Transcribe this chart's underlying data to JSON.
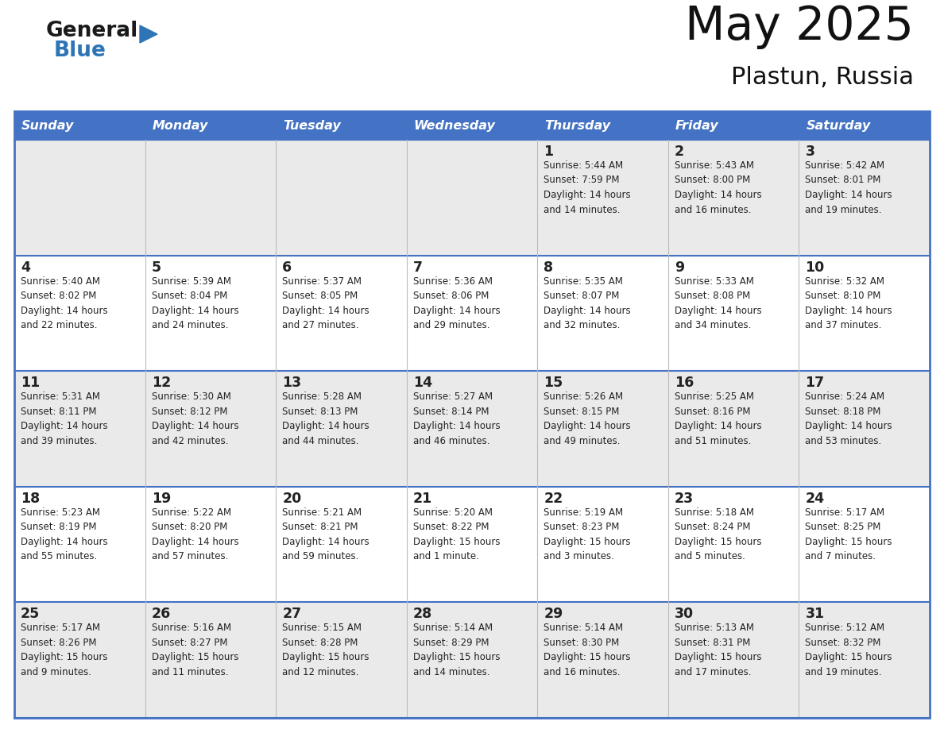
{
  "title": "May 2025",
  "subtitle": "Plastun, Russia",
  "header_color": "#4472C4",
  "header_text_color": "#FFFFFF",
  "days_of_week": [
    "Sunday",
    "Monday",
    "Tuesday",
    "Wednesday",
    "Thursday",
    "Friday",
    "Saturday"
  ],
  "bg_color": "#FFFFFF",
  "cell_bg_even": "#EAEAEA",
  "cell_bg_odd": "#FFFFFF",
  "text_color": "#222222",
  "border_color": "#4472C4",
  "logo_general_color": "#1a1a1a",
  "logo_blue_color": "#2E75B6",
  "logo_triangle_color": "#2E75B6",
  "weeks": [
    [
      {
        "day": "",
        "info": ""
      },
      {
        "day": "",
        "info": ""
      },
      {
        "day": "",
        "info": ""
      },
      {
        "day": "",
        "info": ""
      },
      {
        "day": "1",
        "info": "Sunrise: 5:44 AM\nSunset: 7:59 PM\nDaylight: 14 hours\nand 14 minutes."
      },
      {
        "day": "2",
        "info": "Sunrise: 5:43 AM\nSunset: 8:00 PM\nDaylight: 14 hours\nand 16 minutes."
      },
      {
        "day": "3",
        "info": "Sunrise: 5:42 AM\nSunset: 8:01 PM\nDaylight: 14 hours\nand 19 minutes."
      }
    ],
    [
      {
        "day": "4",
        "info": "Sunrise: 5:40 AM\nSunset: 8:02 PM\nDaylight: 14 hours\nand 22 minutes."
      },
      {
        "day": "5",
        "info": "Sunrise: 5:39 AM\nSunset: 8:04 PM\nDaylight: 14 hours\nand 24 minutes."
      },
      {
        "day": "6",
        "info": "Sunrise: 5:37 AM\nSunset: 8:05 PM\nDaylight: 14 hours\nand 27 minutes."
      },
      {
        "day": "7",
        "info": "Sunrise: 5:36 AM\nSunset: 8:06 PM\nDaylight: 14 hours\nand 29 minutes."
      },
      {
        "day": "8",
        "info": "Sunrise: 5:35 AM\nSunset: 8:07 PM\nDaylight: 14 hours\nand 32 minutes."
      },
      {
        "day": "9",
        "info": "Sunrise: 5:33 AM\nSunset: 8:08 PM\nDaylight: 14 hours\nand 34 minutes."
      },
      {
        "day": "10",
        "info": "Sunrise: 5:32 AM\nSunset: 8:10 PM\nDaylight: 14 hours\nand 37 minutes."
      }
    ],
    [
      {
        "day": "11",
        "info": "Sunrise: 5:31 AM\nSunset: 8:11 PM\nDaylight: 14 hours\nand 39 minutes."
      },
      {
        "day": "12",
        "info": "Sunrise: 5:30 AM\nSunset: 8:12 PM\nDaylight: 14 hours\nand 42 minutes."
      },
      {
        "day": "13",
        "info": "Sunrise: 5:28 AM\nSunset: 8:13 PM\nDaylight: 14 hours\nand 44 minutes."
      },
      {
        "day": "14",
        "info": "Sunrise: 5:27 AM\nSunset: 8:14 PM\nDaylight: 14 hours\nand 46 minutes."
      },
      {
        "day": "15",
        "info": "Sunrise: 5:26 AM\nSunset: 8:15 PM\nDaylight: 14 hours\nand 49 minutes."
      },
      {
        "day": "16",
        "info": "Sunrise: 5:25 AM\nSunset: 8:16 PM\nDaylight: 14 hours\nand 51 minutes."
      },
      {
        "day": "17",
        "info": "Sunrise: 5:24 AM\nSunset: 8:18 PM\nDaylight: 14 hours\nand 53 minutes."
      }
    ],
    [
      {
        "day": "18",
        "info": "Sunrise: 5:23 AM\nSunset: 8:19 PM\nDaylight: 14 hours\nand 55 minutes."
      },
      {
        "day": "19",
        "info": "Sunrise: 5:22 AM\nSunset: 8:20 PM\nDaylight: 14 hours\nand 57 minutes."
      },
      {
        "day": "20",
        "info": "Sunrise: 5:21 AM\nSunset: 8:21 PM\nDaylight: 14 hours\nand 59 minutes."
      },
      {
        "day": "21",
        "info": "Sunrise: 5:20 AM\nSunset: 8:22 PM\nDaylight: 15 hours\nand 1 minute."
      },
      {
        "day": "22",
        "info": "Sunrise: 5:19 AM\nSunset: 8:23 PM\nDaylight: 15 hours\nand 3 minutes."
      },
      {
        "day": "23",
        "info": "Sunrise: 5:18 AM\nSunset: 8:24 PM\nDaylight: 15 hours\nand 5 minutes."
      },
      {
        "day": "24",
        "info": "Sunrise: 5:17 AM\nSunset: 8:25 PM\nDaylight: 15 hours\nand 7 minutes."
      }
    ],
    [
      {
        "day": "25",
        "info": "Sunrise: 5:17 AM\nSunset: 8:26 PM\nDaylight: 15 hours\nand 9 minutes."
      },
      {
        "day": "26",
        "info": "Sunrise: 5:16 AM\nSunset: 8:27 PM\nDaylight: 15 hours\nand 11 minutes."
      },
      {
        "day": "27",
        "info": "Sunrise: 5:15 AM\nSunset: 8:28 PM\nDaylight: 15 hours\nand 12 minutes."
      },
      {
        "day": "28",
        "info": "Sunrise: 5:14 AM\nSunset: 8:29 PM\nDaylight: 15 hours\nand 14 minutes."
      },
      {
        "day": "29",
        "info": "Sunrise: 5:14 AM\nSunset: 8:30 PM\nDaylight: 15 hours\nand 16 minutes."
      },
      {
        "day": "30",
        "info": "Sunrise: 5:13 AM\nSunset: 8:31 PM\nDaylight: 15 hours\nand 17 minutes."
      },
      {
        "day": "31",
        "info": "Sunrise: 5:12 AM\nSunset: 8:32 PM\nDaylight: 15 hours\nand 19 minutes."
      }
    ]
  ]
}
